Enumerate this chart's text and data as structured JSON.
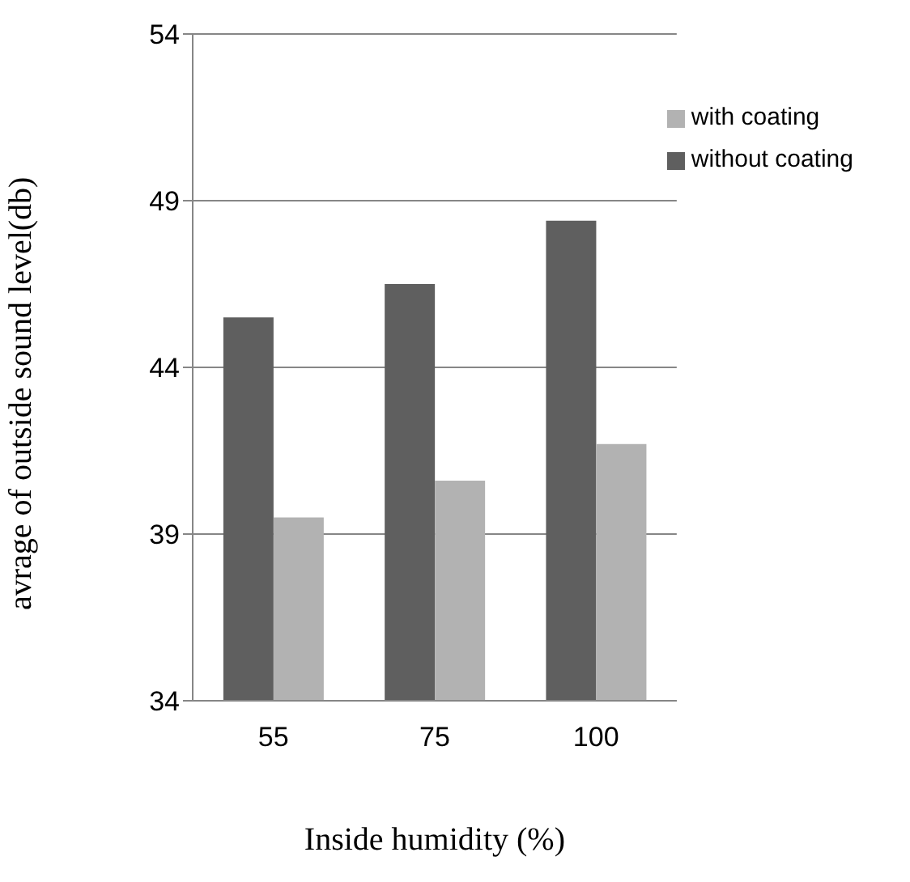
{
  "chart_data": {
    "type": "bar",
    "xlabel": "Inside humidity (%)",
    "ylabel": "avrage of outside sound level(db)",
    "categories": [
      "55",
      "75",
      "100"
    ],
    "series": [
      {
        "name": "without coating",
        "color": "#5f5f5f",
        "values": [
          45.5,
          46.5,
          48.4
        ]
      },
      {
        "name": "with coating",
        "color": "#b2b2b2",
        "values": [
          39.5,
          40.6,
          41.7
        ]
      }
    ],
    "ylim": [
      34,
      54
    ],
    "yticks": [
      34,
      39,
      44,
      49,
      54
    ],
    "grid": "y",
    "legend": "top right"
  }
}
